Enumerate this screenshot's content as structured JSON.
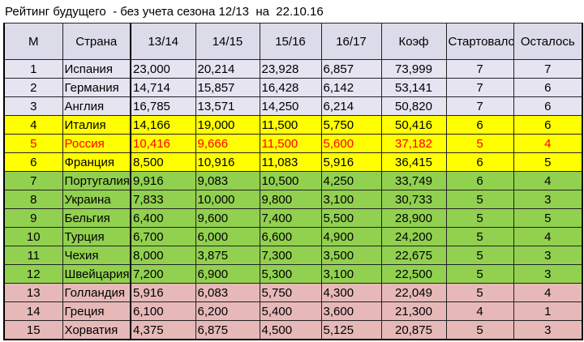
{
  "title": "Рейтинг будущего  - без учета сезона 12/13  на  22.10.16",
  "colors": {
    "lavender": "#e6e4f1",
    "yellow": "#ffff00",
    "green": "#92d050",
    "pink": "#e6b9b8",
    "header": "#dcdbe9",
    "highlight_text": "#ff0000"
  },
  "columns": [
    "М",
    "Страна",
    "13/14",
    "14/15",
    "15/16",
    "16/17",
    "Коэф",
    "Стартовало",
    "Осталось"
  ],
  "rows": [
    {
      "pos": "1",
      "country": "Испания",
      "s1314": "23,000",
      "s1415": "20,214",
      "s1516": "23,928",
      "s1617": "6,857",
      "coef": "73,999",
      "started": "7",
      "left": "7",
      "group": "lavender"
    },
    {
      "pos": "2",
      "country": "Германия",
      "s1314": "14,714",
      "s1415": "15,857",
      "s1516": "16,428",
      "s1617": "6,142",
      "coef": "53,141",
      "started": "7",
      "left": "6",
      "group": "lavender"
    },
    {
      "pos": "3",
      "country": "Англия",
      "s1314": "16,785",
      "s1415": "13,571",
      "s1516": "14,250",
      "s1617": "6,214",
      "coef": "50,820",
      "started": "7",
      "left": "6",
      "group": "lavender"
    },
    {
      "pos": "4",
      "country": "Италия",
      "s1314": "14,166",
      "s1415": "19,000",
      "s1516": "11,500",
      "s1617": "5,750",
      "coef": "50,416",
      "started": "6",
      "left": "6",
      "group": "yellow"
    },
    {
      "pos": "5",
      "country": "Россия",
      "s1314": "10,416",
      "s1415": "9,666",
      "s1516": "11,500",
      "s1617": "5,600",
      "coef": "37,182",
      "started": "5",
      "left": "4",
      "group": "yellow",
      "highlight": true
    },
    {
      "pos": "6",
      "country": "Франция",
      "s1314": "8,500",
      "s1415": "10,916",
      "s1516": "11,083",
      "s1617": "5,916",
      "coef": "36,415",
      "started": "6",
      "left": "5",
      "group": "yellow"
    },
    {
      "pos": "7",
      "country": "Португалия",
      "s1314": "9,916",
      "s1415": "9,083",
      "s1516": "10,500",
      "s1617": "4,250",
      "coef": "33,749",
      "started": "6",
      "left": "4",
      "group": "green"
    },
    {
      "pos": "8",
      "country": "Украина",
      "s1314": "7,833",
      "s1415": "10,000",
      "s1516": "9,800",
      "s1617": "3,100",
      "coef": "30,733",
      "started": "5",
      "left": "3",
      "group": "green"
    },
    {
      "pos": "9",
      "country": "Бельгия",
      "s1314": "6,400",
      "s1415": "9,600",
      "s1516": "7,400",
      "s1617": "5,500",
      "coef": "28,900",
      "started": "5",
      "left": "5",
      "group": "green"
    },
    {
      "pos": "10",
      "country": "Турция",
      "s1314": "6,700",
      "s1415": "6,000",
      "s1516": "6,600",
      "s1617": "4,900",
      "coef": "24,200",
      "started": "5",
      "left": "4",
      "group": "green"
    },
    {
      "pos": "11",
      "country": "Чехия",
      "s1314": "8,000",
      "s1415": "3,875",
      "s1516": "7,300",
      "s1617": "3,500",
      "coef": "22,675",
      "started": "5",
      "left": "3",
      "group": "green"
    },
    {
      "pos": "12",
      "country": "Швейцария",
      "s1314": "7,200",
      "s1415": "6,900",
      "s1516": "5,300",
      "s1617": "3,100",
      "coef": "22,500",
      "started": "5",
      "left": "3",
      "group": "green"
    },
    {
      "pos": "13",
      "country": "Голландия",
      "s1314": "5,916",
      "s1415": "6,083",
      "s1516": "5,750",
      "s1617": "4,300",
      "coef": "22,049",
      "started": "5",
      "left": "4",
      "group": "pink"
    },
    {
      "pos": "14",
      "country": "Греция",
      "s1314": "6,100",
      "s1415": "6,200",
      "s1516": "5,400",
      "s1617": "3,600",
      "coef": "21,300",
      "started": "4",
      "left": "1",
      "group": "pink"
    },
    {
      "pos": "15",
      "country": "Хорватия",
      "s1314": "4,375",
      "s1415": "6,875",
      "s1516": "4,500",
      "s1617": "5,125",
      "coef": "20,875",
      "started": "5",
      "left": "3",
      "group": "pink"
    }
  ]
}
